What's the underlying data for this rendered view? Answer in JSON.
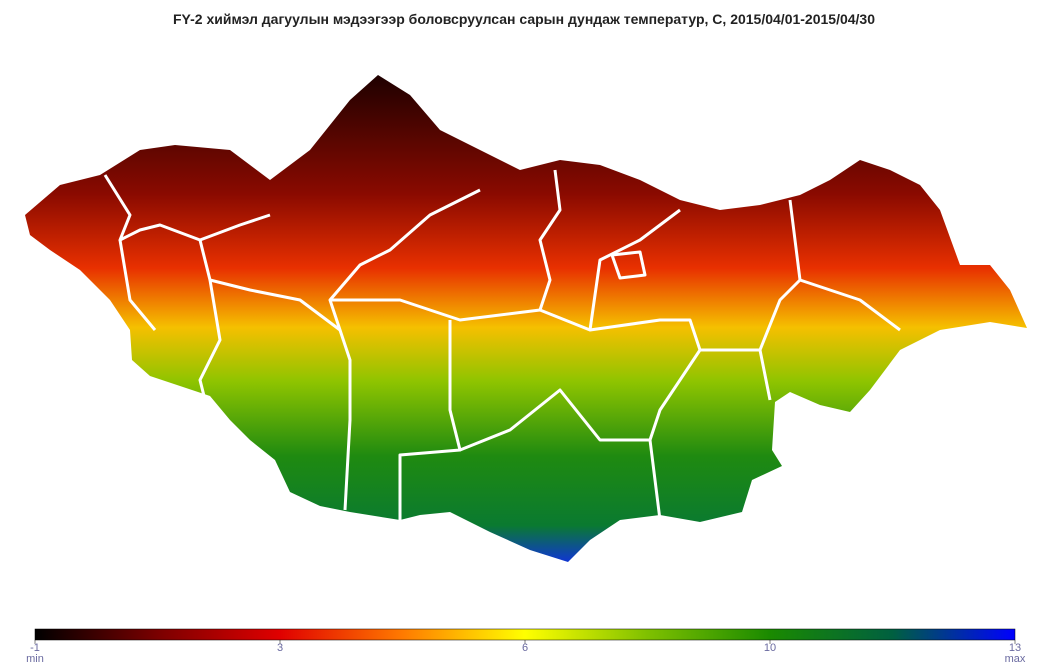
{
  "title": "FY-2 хиймэл дагуулын мэдээгээр боловсруулсан сарын дундаж температур, C, 2015/04/01-2015/04/30",
  "colorbar": {
    "ticks": [
      -1,
      3,
      6,
      10,
      13
    ],
    "min_label": "min",
    "max_label": "max",
    "colors": [
      "#000000",
      "#7a0000",
      "#e00000",
      "#ff7a00",
      "#ffff00",
      "#7fc000",
      "#1a8a00",
      "#006040",
      "#0000ff"
    ]
  }
}
